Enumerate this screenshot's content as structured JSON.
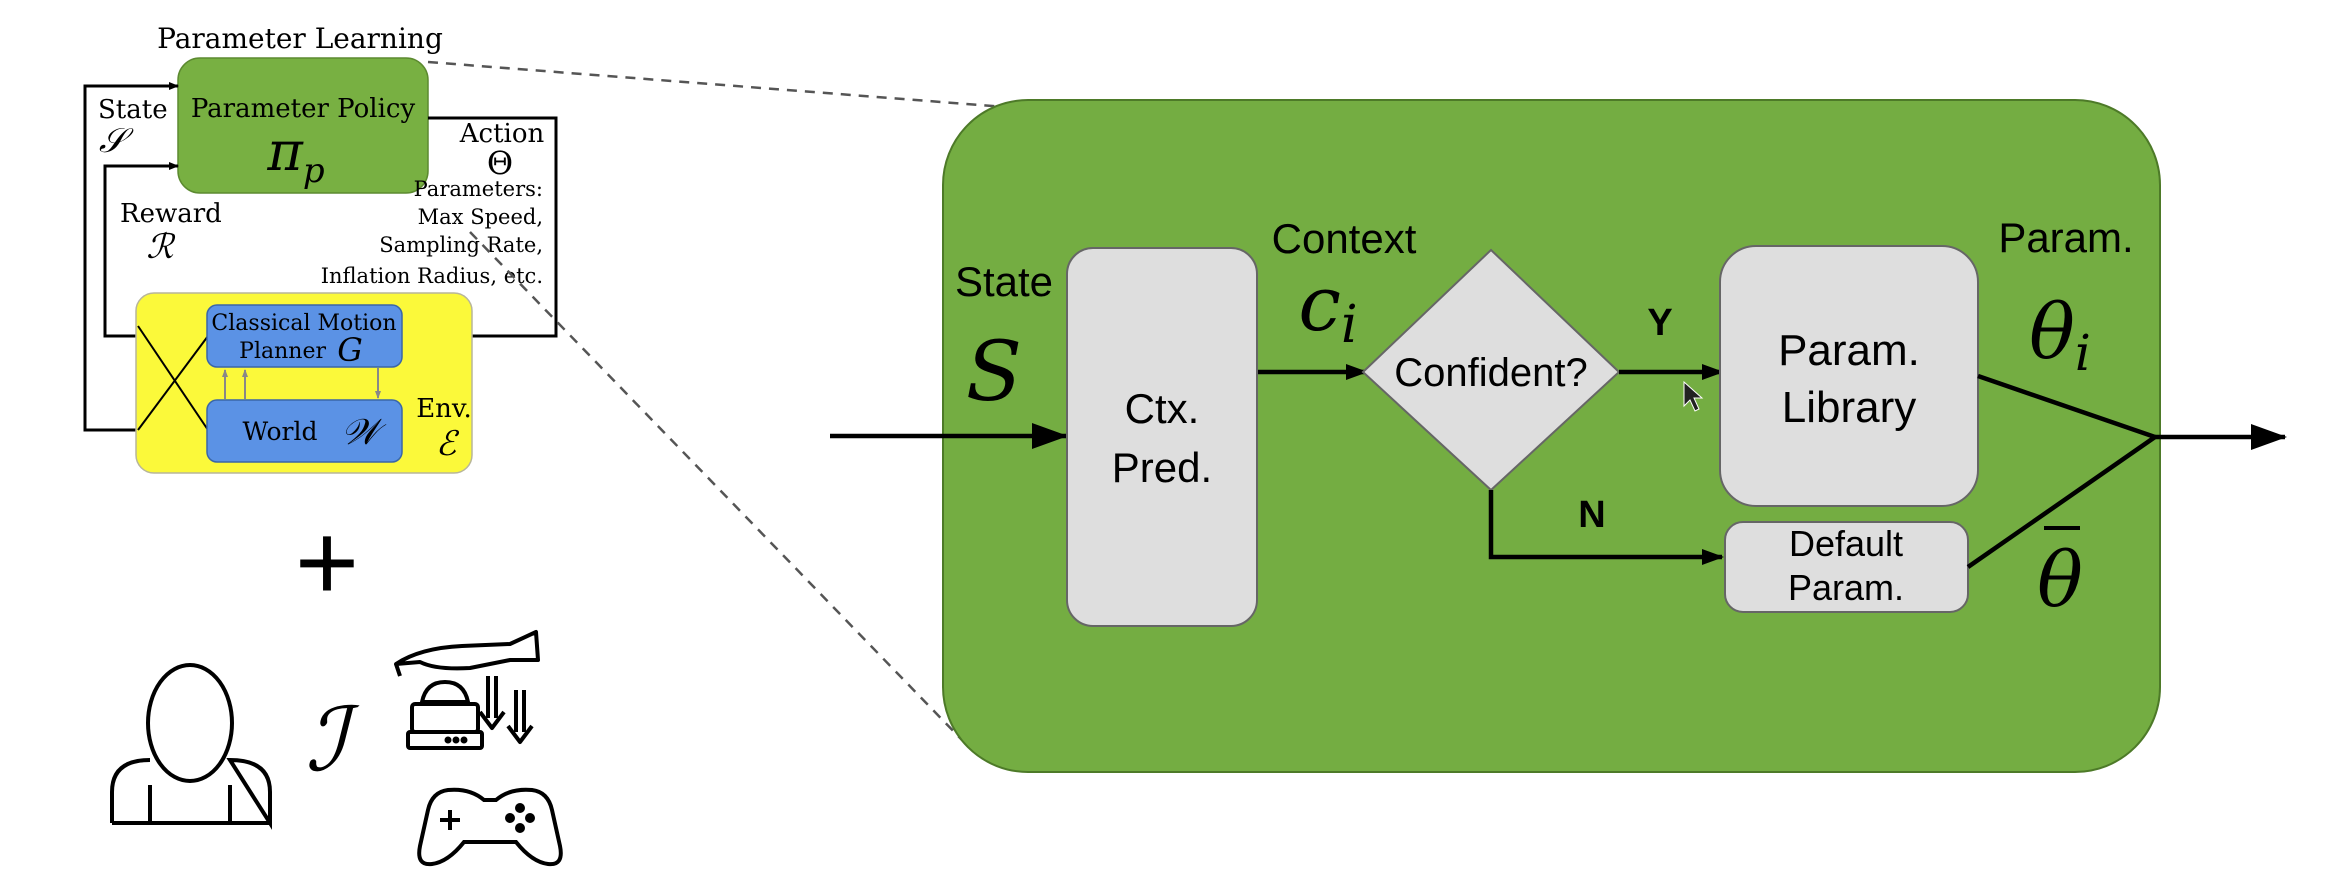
{
  "colors": {
    "panel_green": "#74ad42",
    "policy_green": "#78b042",
    "env_yellow": "#fbf93a",
    "module_blue": "#5b92e5",
    "box_gray": "#dedede",
    "line_black": "#000000"
  },
  "left_loop": {
    "title": "Parameter Learning",
    "policy_label": "Parameter Policy",
    "policy_symbol": "π",
    "policy_subscript": "p",
    "state_label": "State",
    "state_symbol": "𝒮",
    "action_label": "Action",
    "action_symbol": "Θ",
    "reward_label": "Reward",
    "reward_symbol": "ℛ",
    "params_lines": [
      "Parameters:",
      "Max Speed,",
      "Sampling Rate,",
      "Inflation Radius, etc."
    ],
    "planner_line1": "Classical Motion",
    "planner_line2": "Planner",
    "planner_symbol": "G",
    "world_label": "World",
    "world_symbol": "𝒲",
    "env_label": "Env.",
    "env_symbol": "ℰ"
  },
  "interventions": {
    "plus": "+",
    "symbol": "ℐ",
    "icons": [
      "person-icon",
      "teleoperation-icon",
      "gamepad-icon"
    ]
  },
  "main": {
    "state_label": "State",
    "state_symbol": "S",
    "predictor_line1": "Ctx.",
    "predictor_line2": "Pred.",
    "context_label": "Context",
    "context_symbol": "c",
    "context_subscript": "i",
    "decision_label": "Confident?",
    "yes_label": "Y",
    "no_label": "N",
    "library_line1": "Param.",
    "library_line2": "Library",
    "default_line1": "Default",
    "default_line2": "Param.",
    "param_label": "Param.",
    "theta_i": "θ",
    "theta_i_subscript": "i",
    "theta_bar": "θ"
  }
}
